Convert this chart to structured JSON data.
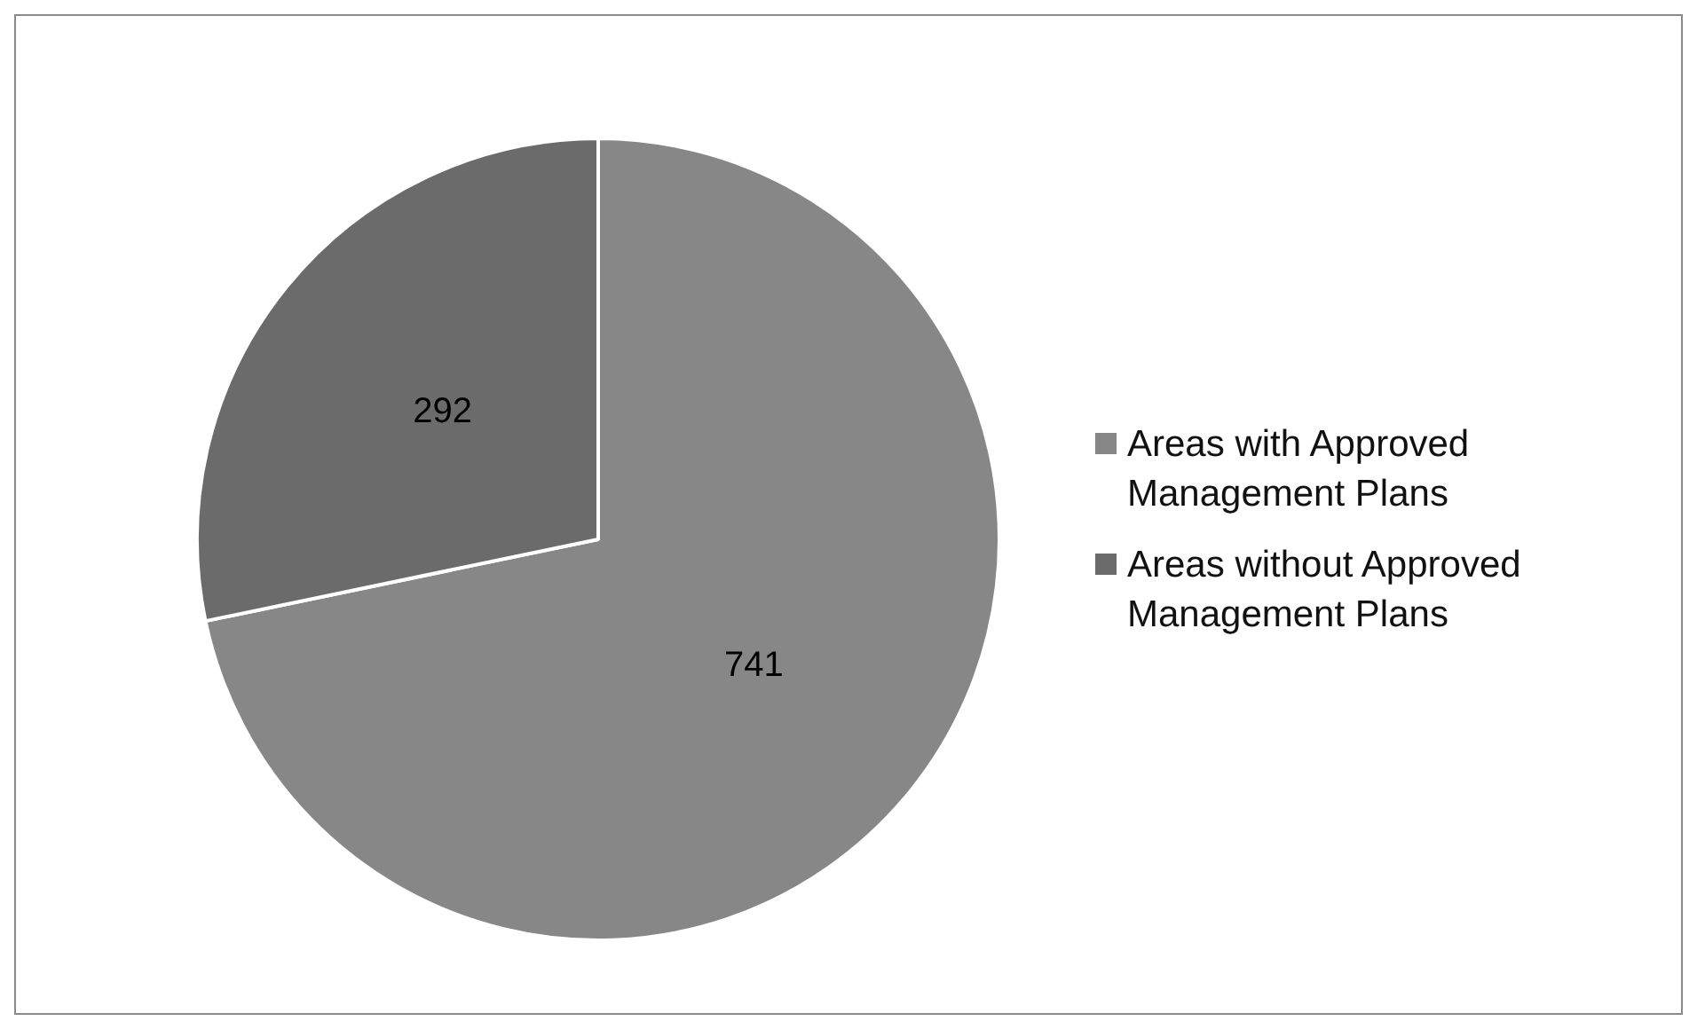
{
  "chart_data": {
    "type": "pie",
    "categories": [
      "Areas with Approved Management Plans",
      "Areas without Approved Management Plans"
    ],
    "values": [
      741,
      292
    ],
    "colors": [
      "#878787",
      "#6b6b6b"
    ],
    "data_labels": true,
    "legend": "right"
  }
}
